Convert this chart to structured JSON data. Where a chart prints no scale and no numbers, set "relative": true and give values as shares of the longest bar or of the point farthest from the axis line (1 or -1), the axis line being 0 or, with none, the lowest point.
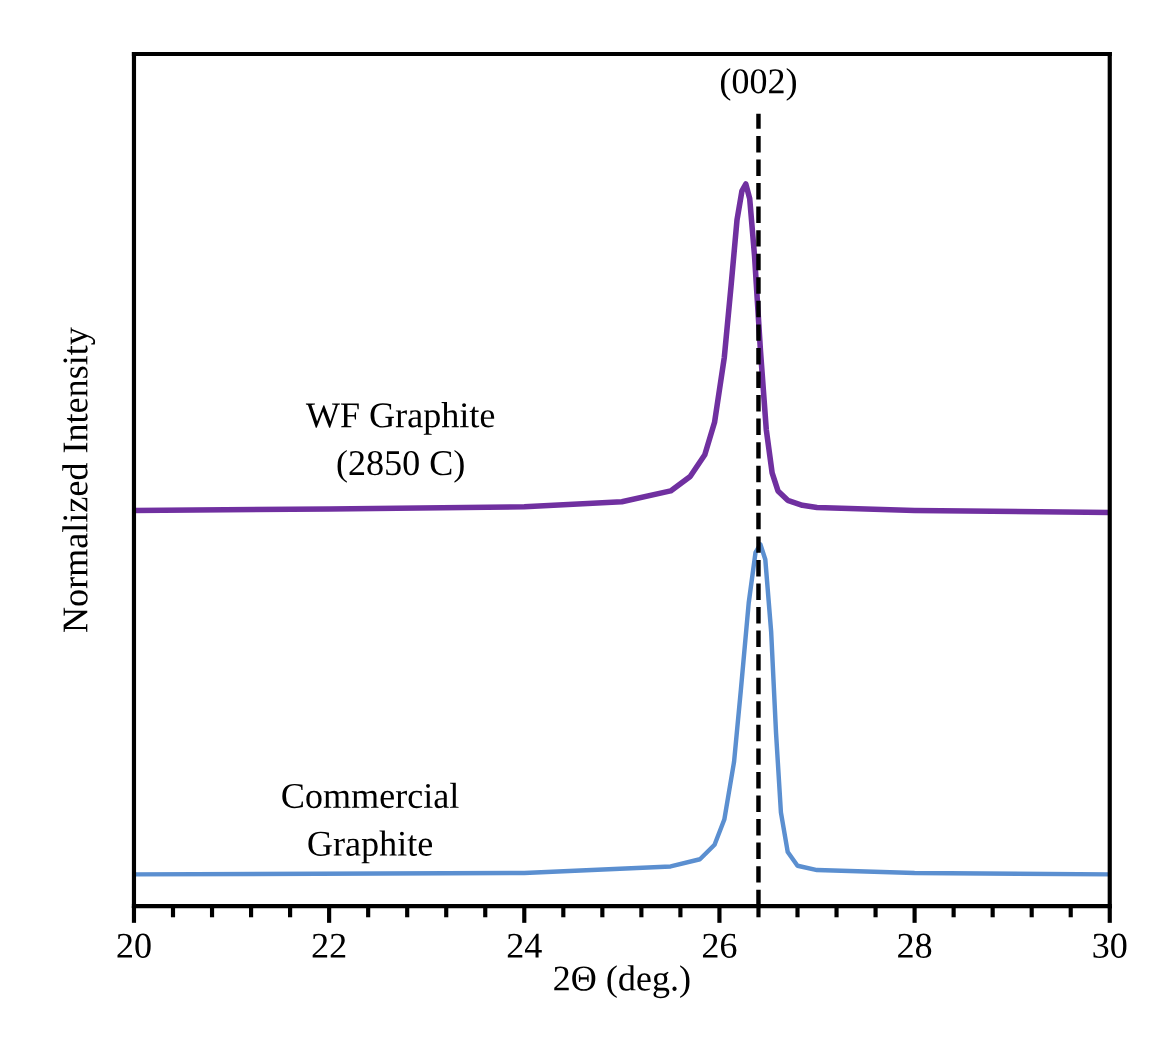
{
  "chart_data": {
    "type": "line",
    "relative": true,
    "xlabel": "2Θ (deg.)",
    "ylabel": "Normalized Intensity",
    "xlim": [
      20,
      30
    ],
    "xticks": [
      20,
      {
        "value": 20.4,
        "label": null
      },
      {
        "value": 20.8,
        "label": null
      },
      {
        "value": 21.2,
        "label": null
      },
      {
        "value": 21.6,
        "label": null
      },
      22,
      {
        "value": 22.4,
        "label": null
      },
      {
        "value": 22.8,
        "label": null
      },
      {
        "value": 23.2,
        "label": null
      },
      {
        "value": 23.6,
        "label": null
      },
      24,
      {
        "value": 24.4,
        "label": null
      },
      {
        "value": 24.8,
        "label": null
      },
      {
        "value": 25.2,
        "label": null
      },
      {
        "value": 25.6,
        "label": null
      },
      26,
      {
        "value": 26.4,
        "label": null
      },
      {
        "value": 26.8,
        "label": null
      },
      {
        "value": 27.2,
        "label": null
      },
      {
        "value": 27.6,
        "label": null
      },
      28,
      {
        "value": 28.4,
        "label": null
      },
      {
        "value": 28.8,
        "label": null
      },
      {
        "value": 29.2,
        "label": null
      },
      {
        "value": 29.6,
        "label": null
      },
      30
    ],
    "tick_labels": "x",
    "grid": false,
    "legend": false,
    "marker": "none",
    "line_style": "solid",
    "ref_lines": [
      {
        "axis": "x",
        "value": 26.4,
        "color": "#000000",
        "line_style": "dashed"
      }
    ],
    "annotations": [
      "(002)"
    ],
    "series": [
      {
        "name": "WF Graphite\n(2850 C)",
        "color": "#7030a0",
        "x": [
          20,
          22,
          24,
          25,
          25.5,
          25.7,
          25.85,
          25.95,
          26.05,
          26.12,
          26.18,
          26.23,
          26.27,
          26.31,
          26.36,
          26.42,
          26.48,
          26.54,
          26.6,
          26.7,
          26.85,
          27,
          28,
          30
        ],
        "values": [
          0.548,
          0.55,
          0.553,
          0.56,
          0.575,
          0.595,
          0.625,
          0.67,
          0.76,
          0.86,
          0.95,
          0.99,
          1.0,
          0.98,
          0.9,
          0.77,
          0.66,
          0.6,
          0.575,
          0.562,
          0.555,
          0.552,
          0.548,
          0.545
        ]
      },
      {
        "name": "Commercial\nGraphite",
        "color": "#5b8fd0",
        "x": [
          20,
          24,
          25.5,
          25.8,
          25.95,
          26.05,
          26.15,
          26.22,
          26.3,
          26.37,
          26.42,
          26.47,
          26.53,
          26.58,
          26.63,
          26.7,
          26.8,
          27,
          28,
          30
        ],
        "values": [
          0.044,
          0.046,
          0.055,
          0.065,
          0.085,
          0.12,
          0.2,
          0.3,
          0.42,
          0.49,
          0.501,
          0.48,
          0.38,
          0.24,
          0.13,
          0.075,
          0.056,
          0.05,
          0.046,
          0.044
        ]
      }
    ]
  }
}
